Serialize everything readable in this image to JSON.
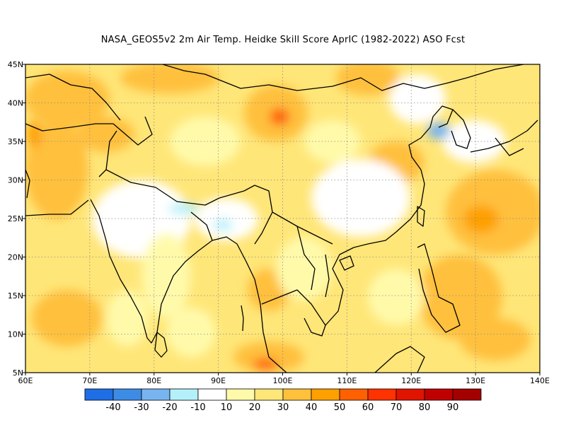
{
  "title": "NASA_GEOS5v2  2m Air Temp. Heidke Skill Score AprIC (1982-2022) ASO Fcst",
  "map": {
    "lon_range": [
      60,
      140
    ],
    "lat_range": [
      5,
      45
    ],
    "lon_ticks": [
      {
        "value": 60,
        "label": "60E"
      },
      {
        "value": 70,
        "label": "70E"
      },
      {
        "value": 80,
        "label": "80E"
      },
      {
        "value": 90,
        "label": "90E"
      },
      {
        "value": 100,
        "label": "100E"
      },
      {
        "value": 110,
        "label": "110E"
      },
      {
        "value": 120,
        "label": "120E"
      },
      {
        "value": 130,
        "label": "130E"
      },
      {
        "value": 140,
        "label": "140E"
      }
    ],
    "lat_ticks": [
      {
        "value": 5,
        "label": "5N"
      },
      {
        "value": 10,
        "label": "10N"
      },
      {
        "value": 15,
        "label": "15N"
      },
      {
        "value": 20,
        "label": "20N"
      },
      {
        "value": 25,
        "label": "25N"
      },
      {
        "value": 30,
        "label": "30N"
      },
      {
        "value": 35,
        "label": "35N"
      },
      {
        "value": 40,
        "label": "40N"
      },
      {
        "value": 45,
        "label": "45N"
      }
    ],
    "gridlines": "dotted"
  },
  "colorbar": {
    "bins": [
      {
        "color": "#1e6ee6"
      },
      {
        "color": "#3c8ce6"
      },
      {
        "color": "#78b4f0"
      },
      {
        "color": "#b4f0fa"
      },
      {
        "color": "#ffffff"
      },
      {
        "color": "#fffaaa"
      },
      {
        "color": "#ffe678"
      },
      {
        "color": "#ffc03c"
      },
      {
        "color": "#ffa000"
      },
      {
        "color": "#ff6000"
      },
      {
        "color": "#ff3200"
      },
      {
        "color": "#e11400"
      },
      {
        "color": "#c00000"
      },
      {
        "color": "#a50000"
      }
    ],
    "labels": [
      "-40",
      "-30",
      "-20",
      "-10",
      "10",
      "20",
      "30",
      "40",
      "50",
      "60",
      "70",
      "80",
      "90"
    ]
  },
  "field": {
    "description_levels": "-40..90",
    "regions": [
      {
        "name": "korea-negative",
        "lon": 121.8,
        "lat": 36.3,
        "value": -15
      },
      {
        "name": "bangladesh-negative",
        "lon": 86.5,
        "lat": 25.5,
        "value": -12
      }
    ]
  }
}
